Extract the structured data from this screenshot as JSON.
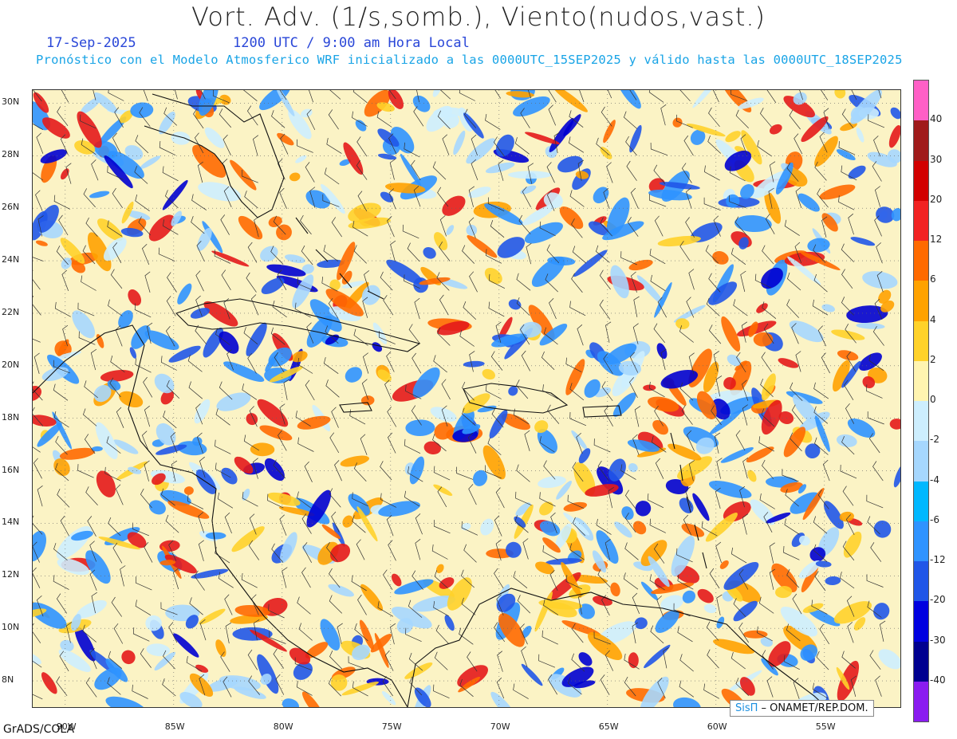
{
  "title": "Vort. Adv. (1/s,somb.), Viento(nudos,vast.)",
  "date": "17-Sep-2025",
  "time": "1200 UTC / 9:00 am Hora Local",
  "description": "Pronóstico con el Modelo Atmosferico WRF inicializado a las 0000UTC_15SEP2025 y válido hasta las  0000UTC_18SEP2025",
  "map": {
    "lat_range": [
      7,
      30.5
    ],
    "lon_range": [
      -91.5,
      -51.5
    ],
    "lat_labels": [
      "30N",
      "28N",
      "26N",
      "24N",
      "22N",
      "20N",
      "18N",
      "16N",
      "14N",
      "12N",
      "10N",
      "8N"
    ],
    "lon_labels": [
      "90W",
      "85W",
      "80W",
      "75W",
      "70W",
      "65W",
      "60W",
      "55W"
    ]
  },
  "colorbar": {
    "labels": [
      "40",
      "30",
      "20",
      "12",
      "6",
      "4",
      "2",
      "0",
      "-2",
      "-4",
      "-6",
      "-12",
      "-20",
      "-30",
      "-40"
    ],
    "colors": [
      "#ff5fc6",
      "#a01b1b",
      "#d20000",
      "#f22222",
      "#ff6a00",
      "#ffa200",
      "#ffd22a",
      "#fff4b0",
      "#cdeefe",
      "#a6d7fe",
      "#00b8ff",
      "#2f93ff",
      "#2056e8",
      "#0000e0",
      "#000090",
      "#8a1cf0"
    ]
  },
  "credit": {
    "sis": "SisΠ",
    "org": " – ONAMET/REP.DOM."
  },
  "footer": "GrADS/COLA"
}
